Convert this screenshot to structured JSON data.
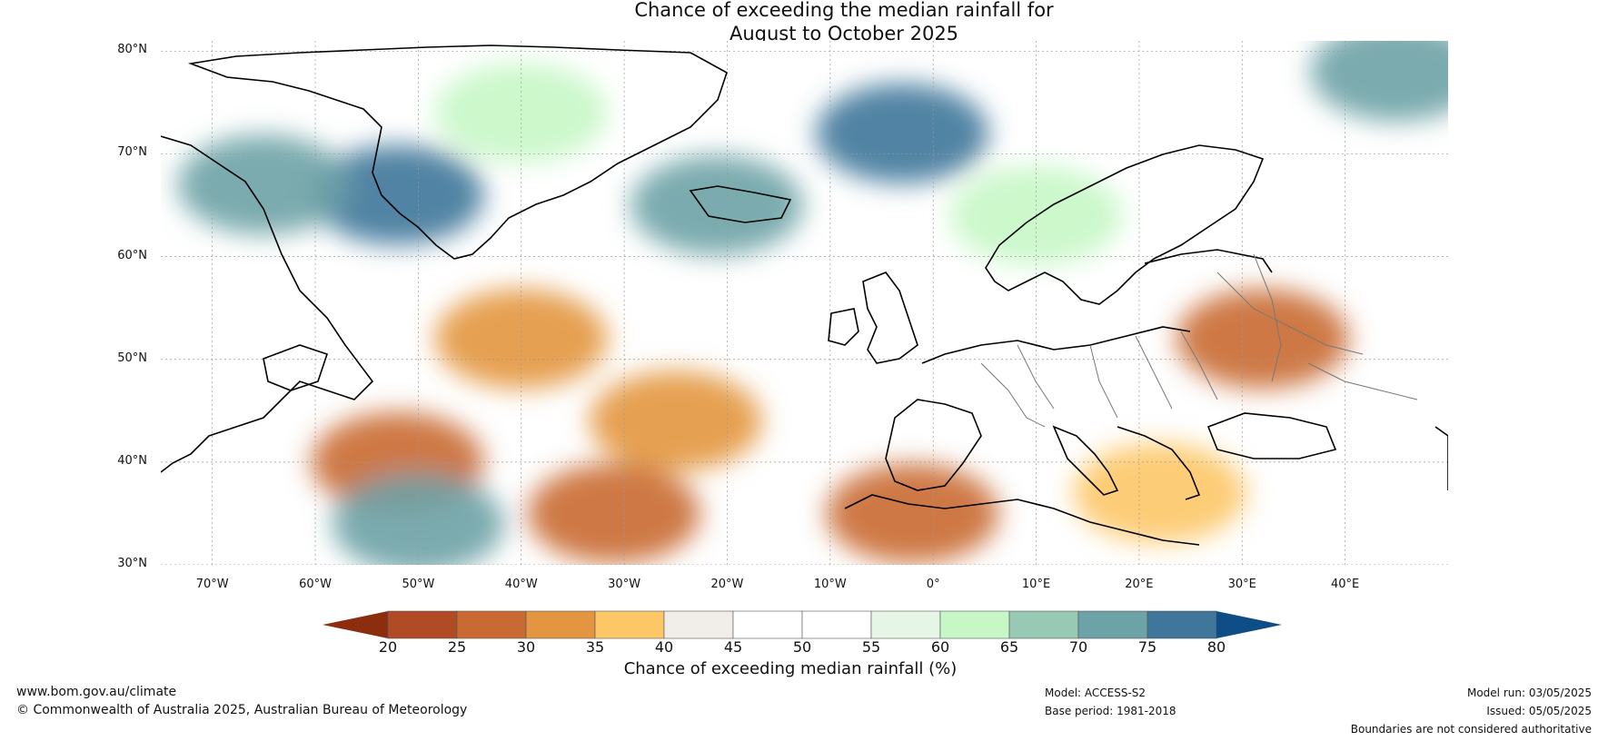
{
  "title": {
    "line1": "Chance of exceeding the median rainfall for",
    "line2": "August to October 2025"
  },
  "map": {
    "lat_ticks": [
      "80°N",
      "70°N",
      "60°N",
      "50°N",
      "40°N",
      "30°N"
    ],
    "lon_ticks": [
      "70°W",
      "60°W",
      "50°W",
      "40°W",
      "30°W",
      "20°W",
      "10°W",
      "0°",
      "10°E",
      "20°E",
      "30°E",
      "40°E"
    ],
    "lat_range": [
      30,
      81
    ],
    "lon_range": [
      -75,
      50
    ],
    "regions": [
      {
        "name": "north-atlantic-wet",
        "lon": -40,
        "lat": 74,
        "value": 62
      },
      {
        "name": "norwegian-sea-very-wet",
        "lon": -3,
        "lat": 72,
        "value": 78
      },
      {
        "name": "scandinavia-wet",
        "lon": 10,
        "lat": 64,
        "value": 63
      },
      {
        "name": "greenland-west-wet",
        "lon": -52,
        "lat": 66,
        "value": 76
      },
      {
        "name": "baffin-wet",
        "lon": -65,
        "lat": 67,
        "value": 72
      },
      {
        "name": "iceland-wet",
        "lon": -21,
        "lat": 65,
        "value": 72
      },
      {
        "name": "barents-wet",
        "lon": 45,
        "lat": 78,
        "value": 72
      },
      {
        "name": "eastern-europe-dry",
        "lon": 32,
        "lat": 52,
        "value": 28
      },
      {
        "name": "iberia-north-africa-dry",
        "lon": -2,
        "lat": 35,
        "value": 28
      },
      {
        "name": "central-atlantic-dry",
        "lon": -25,
        "lat": 44,
        "value": 33
      },
      {
        "name": "atlantic-band-dry",
        "lon": -52,
        "lat": 40,
        "value": 25
      },
      {
        "name": "subtropical-atlantic-dry",
        "lon": -31,
        "lat": 35,
        "value": 26
      },
      {
        "name": "north-atlantic-dry",
        "lon": -40,
        "lat": 52,
        "value": 32
      },
      {
        "name": "mediterranean-dry",
        "lon": 22,
        "lat": 37,
        "value": 35
      },
      {
        "name": "atlantic-wet-patch",
        "lon": -50,
        "lat": 34,
        "value": 72
      }
    ]
  },
  "colorbar": {
    "ticks": [
      "20",
      "25",
      "30",
      "35",
      "40",
      "45",
      "50",
      "55",
      "60",
      "65",
      "70",
      "75",
      "80"
    ],
    "colors": [
      "#8c2d0e",
      "#b04b25",
      "#c96a32",
      "#e3963f",
      "#fdc766",
      "#f1ede8",
      "#ffffff",
      "#ffffff",
      "#e6f6e6",
      "#c7f7c7",
      "#97c9b5",
      "#6da2a6",
      "#3f779a",
      "#0f4d87"
    ],
    "label": "Chance of exceeding median rainfall (%)"
  },
  "footer": {
    "website": "www.bom.gov.au/climate",
    "copyright": "© Commonwealth of Australia 2025, Australian Bureau of Meteorology",
    "model": "Model: ACCESS-S2",
    "base_period": "Base period: 1981-2018",
    "model_run": "Model run: 03/05/2025",
    "issued": "Issued: 05/05/2025",
    "disclaimer": "Boundaries are not considered authoritative"
  }
}
